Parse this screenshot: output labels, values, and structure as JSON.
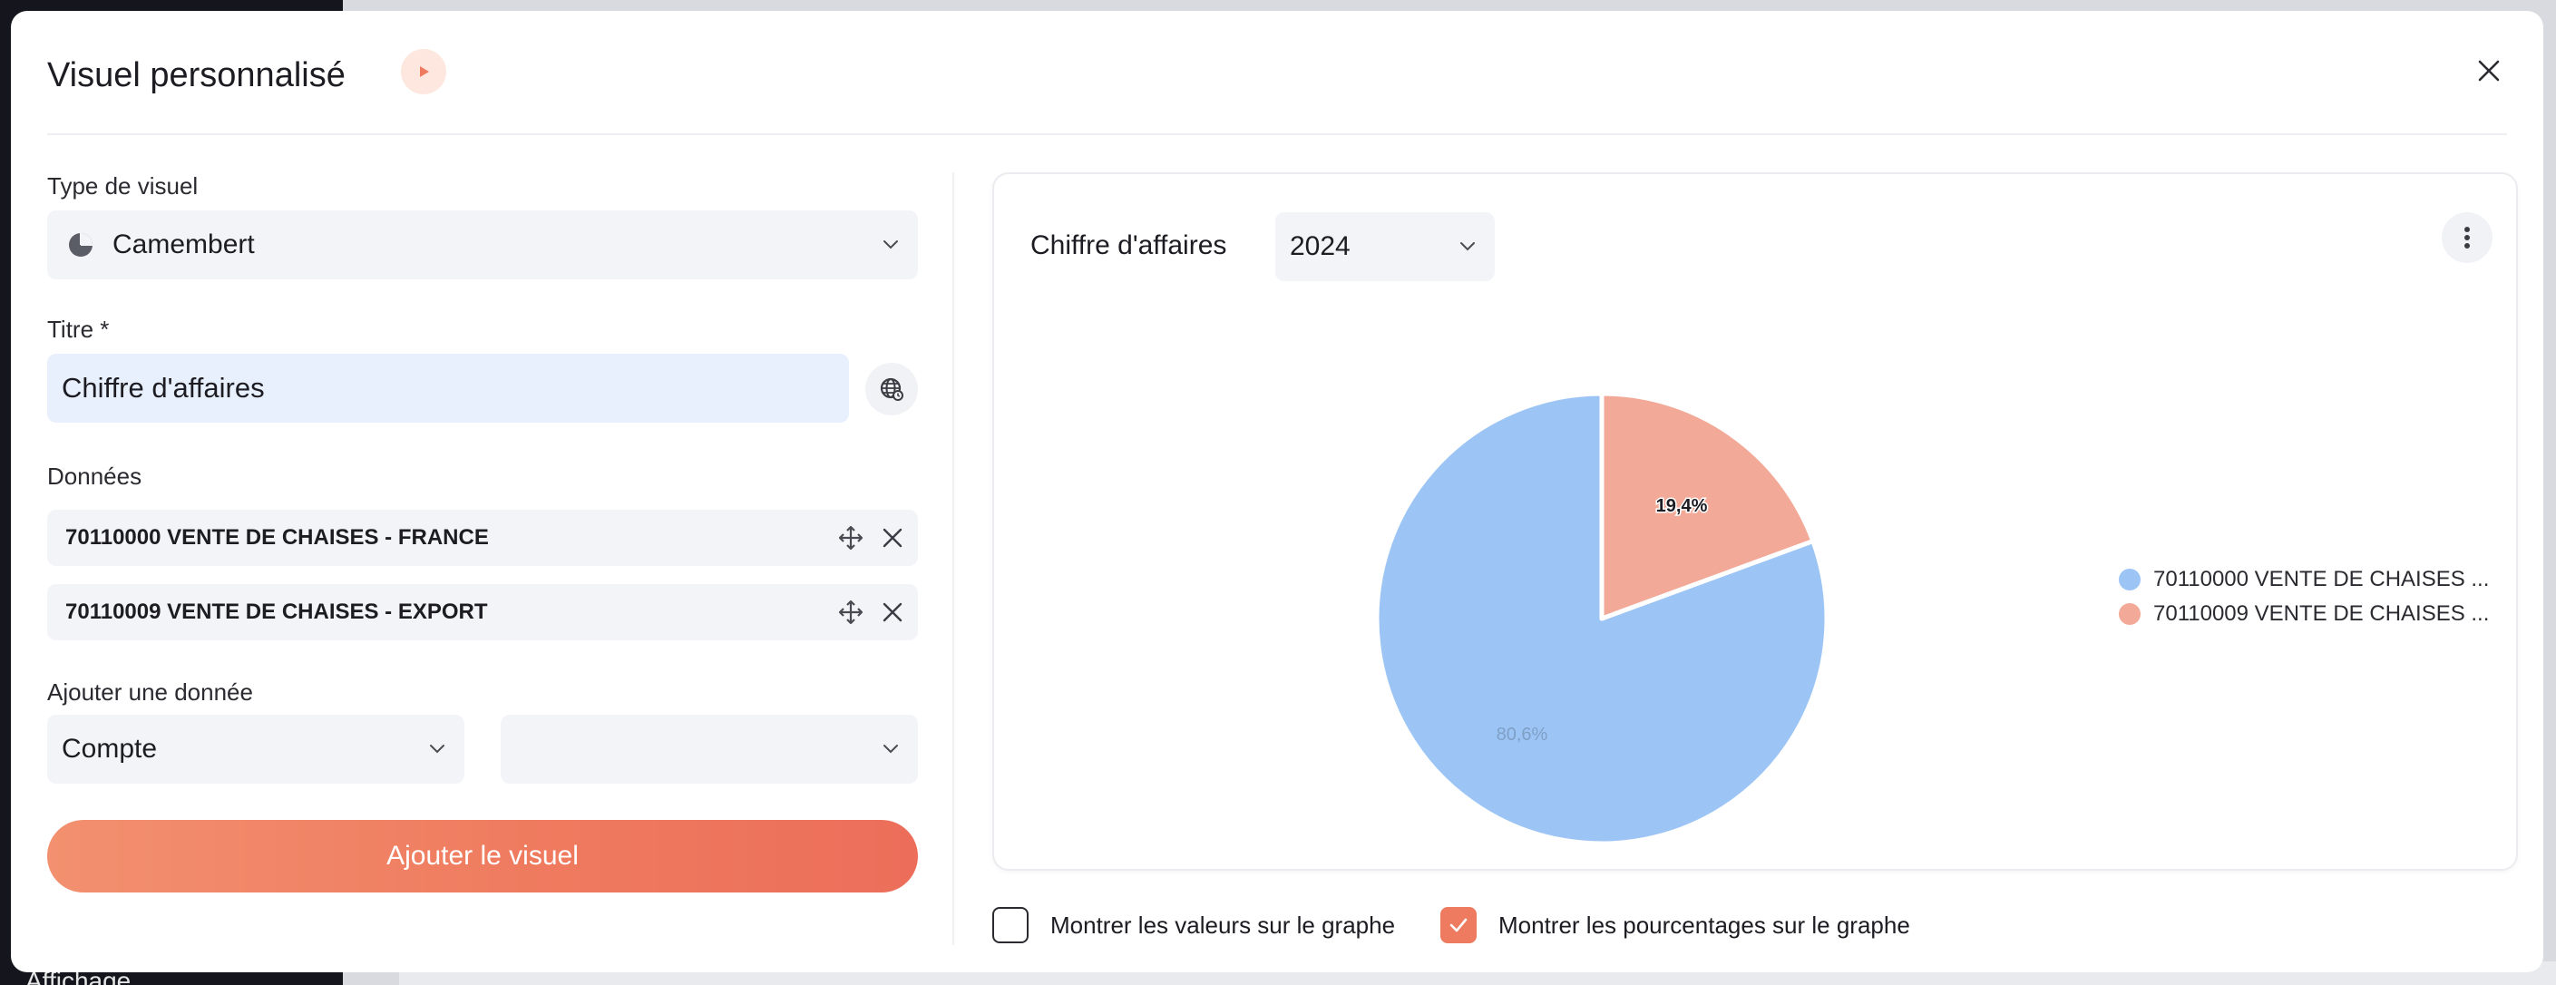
{
  "background": {
    "sidebar_text": "Affichage"
  },
  "modal": {
    "title": "Visuel personnalisé"
  },
  "form": {
    "type_label": "Type de visuel",
    "type_value": "Camembert",
    "title_label": "Titre *",
    "title_value": "Chiffre d'affaires",
    "data_label": "Données",
    "data_items": [
      {
        "label": "70110000 VENTE DE CHAISES - FRANCE"
      },
      {
        "label": "70110009 VENTE DE CHAISES - EXPORT"
      }
    ],
    "add_data_label": "Ajouter une donnée",
    "add_data_select1": "Compte",
    "add_data_select2": "",
    "submit_label": "Ajouter le visuel"
  },
  "chart": {
    "title": "Chiffre d'affaires",
    "year": "2024"
  },
  "chart_data": {
    "type": "pie",
    "title": "Chiffre d'affaires",
    "labels": [
      "70110000 VENTE DE CHAISES ...",
      "70110009 VENTE DE CHAISES ..."
    ],
    "values": [
      80.6,
      19.4
    ],
    "value_labels": [
      "80,6%",
      "19,4%"
    ],
    "colors": [
      "#9cc5f6",
      "#f2a998"
    ],
    "legend_position": "right"
  },
  "options": {
    "show_values_label": "Montrer les valeurs sur le graphe",
    "show_values_checked": false,
    "show_percent_label": "Montrer les pourcentages sur le graphe",
    "show_percent_checked": true
  },
  "colors": {
    "accent": "#ee7b5f",
    "input_bg": "#f3f4f8",
    "title_input_bg": "#e8f0fd"
  }
}
